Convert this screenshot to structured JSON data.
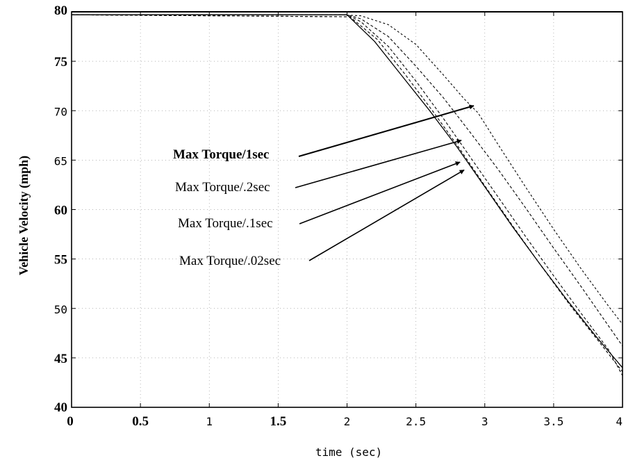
{
  "chart_data": {
    "type": "line",
    "title": "",
    "xlabel": "time (sec)",
    "ylabel": "Vehicle Velocity (mph)",
    "xlim": [
      0,
      4
    ],
    "ylim": [
      40,
      80
    ],
    "grid": true,
    "x_tick_labels": [
      "0",
      "0.5",
      "1",
      "1.5",
      "2",
      "2.5",
      "3",
      "3.5",
      "4"
    ],
    "y_tick_labels": [
      "40",
      "45",
      "50",
      "55",
      "60",
      "65",
      "70",
      "75",
      "80"
    ],
    "series": [
      {
        "style": "solid",
        "x": [
          0,
          2.0,
          2.2,
          2.4,
          2.6,
          2.8,
          3.0,
          3.2,
          3.4,
          3.6,
          3.8,
          4.0
        ],
        "y": [
          79.7,
          79.7,
          77.0,
          73.5,
          70.0,
          66.3,
          62.3,
          58.3,
          54.5,
          50.8,
          47.3,
          44.0
        ]
      },
      {
        "style": "dashed",
        "x": [
          0,
          2.02,
          2.22,
          2.42,
          2.62,
          2.82,
          3.02,
          3.22,
          3.42,
          3.62,
          3.82,
          4.0
        ],
        "y": [
          79.7,
          79.5,
          77.2,
          73.7,
          70.0,
          66.1,
          62.0,
          58.0,
          54.1,
          50.3,
          46.8,
          43.6
        ]
      },
      {
        "style": "dashed",
        "x": [
          0,
          2.03,
          2.1,
          2.3,
          2.5,
          2.7,
          2.9,
          3.1,
          3.3,
          3.5,
          3.7,
          3.9,
          4.0
        ],
        "y": [
          79.7,
          79.5,
          79.0,
          76.5,
          73.0,
          69.2,
          65.2,
          61.2,
          57.2,
          53.3,
          49.5,
          45.8,
          43.2
        ]
      },
      {
        "style": "dashed",
        "x": [
          0,
          2.0,
          2.1,
          2.3,
          2.5,
          2.7,
          2.9,
          3.1,
          3.3,
          3.5,
          3.7,
          3.9,
          4.0
        ],
        "y": [
          79.7,
          79.7,
          79.3,
          77.5,
          74.5,
          71.3,
          67.7,
          64.0,
          60.1,
          56.1,
          52.2,
          48.2,
          46.2
        ]
      },
      {
        "style": "dashed",
        "x": [
          0,
          1.95,
          2.1,
          2.3,
          2.5,
          2.7,
          2.85,
          2.95,
          3.1,
          3.3,
          3.5,
          3.7,
          3.9,
          4.0
        ],
        "y": [
          79.7,
          79.7,
          79.6,
          78.7,
          76.7,
          73.6,
          71.2,
          69.8,
          66.5,
          62.2,
          58.0,
          54.0,
          50.2,
          48.4
        ]
      }
    ],
    "annotations": [
      {
        "text": "Max Torque/1sec",
        "bold": true,
        "arrow_to": [
          2.92,
          70.5
        ]
      },
      {
        "text": "Max Torque/.2sec",
        "bold": false,
        "arrow_to": [
          2.83,
          67.0
        ]
      },
      {
        "text": "Max Torque/.1sec",
        "bold": false,
        "arrow_to": [
          2.82,
          64.8
        ]
      },
      {
        "text": "Max Torque/.02sec",
        "bold": false,
        "arrow_to": [
          2.85,
          64.0
        ]
      }
    ]
  }
}
